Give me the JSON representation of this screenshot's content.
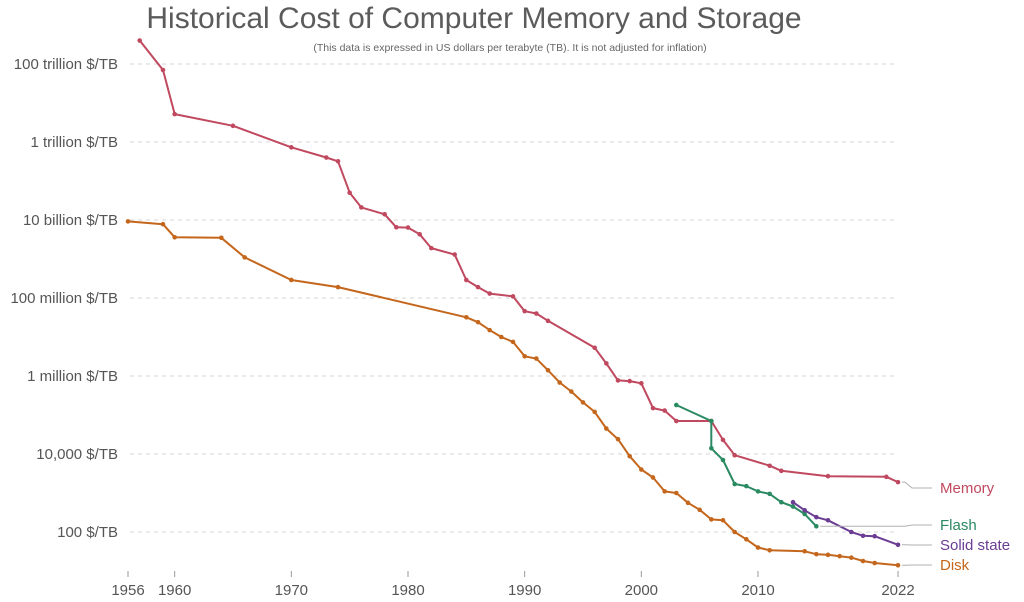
{
  "chart_data": {
    "type": "line",
    "title": "Historical Cost of Computer Memory and Storage",
    "subtitle": "(This data is expressed in US dollars per terabyte (TB). It is not adjusted for inflation)",
    "yscale": "log",
    "xlim": [
      1956,
      2022
    ],
    "ylim": [
      13,
      600000000000000
    ],
    "grid": true,
    "legend": "right",
    "x_ticks": [
      {
        "value": 1956,
        "label": "1956"
      },
      {
        "value": 1960,
        "label": "1960"
      },
      {
        "value": 1970,
        "label": "1970"
      },
      {
        "value": 1980,
        "label": "1980"
      },
      {
        "value": 1990,
        "label": "1990"
      },
      {
        "value": 2000,
        "label": "2000"
      },
      {
        "value": 2010,
        "label": "2010"
      },
      {
        "value": 2022,
        "label": "2022"
      }
    ],
    "y_ticks": [
      {
        "value": 100,
        "label": "100 $/TB"
      },
      {
        "value": 10000,
        "label": "10,000 $/TB"
      },
      {
        "value": 1000000,
        "label": "1 million $/TB"
      },
      {
        "value": 100000000,
        "label": "100 million $/TB"
      },
      {
        "value": 10000000000,
        "label": "10 billion $/TB"
      },
      {
        "value": 1000000000000,
        "label": "1 trillion $/TB"
      },
      {
        "value": 100000000000000,
        "label": "100 trillion $/TB"
      }
    ],
    "series": [
      {
        "name": "Memory",
        "color": "#c0485f",
        "points": [
          [
            1957,
            400000000000000
          ],
          [
            1959,
            70000000000000
          ],
          [
            1960,
            5200000000000
          ],
          [
            1965,
            2600000000000
          ],
          [
            1970,
            730000000000
          ],
          [
            1973,
            400000000000
          ],
          [
            1974,
            320000000000
          ],
          [
            1975,
            50000000000
          ],
          [
            1976,
            21000000000
          ],
          [
            1978,
            14000000000
          ],
          [
            1979,
            6500000000
          ],
          [
            1980,
            6400000000
          ],
          [
            1981,
            4300000000
          ],
          [
            1982,
            1900000000
          ],
          [
            1984,
            1300000000
          ],
          [
            1985,
            290000000
          ],
          [
            1986,
            190000000
          ],
          [
            1987,
            130000000
          ],
          [
            1989,
            110000000
          ],
          [
            1990,
            46000000
          ],
          [
            1991,
            40000000
          ],
          [
            1992,
            26000000
          ],
          [
            1996,
            5300000
          ],
          [
            1997,
            2100000
          ],
          [
            1998,
            770000
          ],
          [
            1999,
            740000
          ],
          [
            2000,
            650000
          ],
          [
            2001,
            150000
          ],
          [
            2002,
            130000
          ],
          [
            2003,
            70000
          ],
          [
            2006,
            70000
          ],
          [
            2007,
            23000
          ],
          [
            2008,
            9300
          ],
          [
            2011,
            5000
          ],
          [
            2012,
            3700
          ],
          [
            2016,
            2700
          ],
          [
            2021,
            2600
          ],
          [
            2022,
            1900
          ]
        ]
      },
      {
        "name": "Flash",
        "color": "#2a8a62",
        "points": [
          [
            2003,
            180000
          ],
          [
            2006,
            70000
          ],
          [
            2006,
            14000
          ],
          [
            2007,
            7000
          ],
          [
            2008,
            1700
          ],
          [
            2009,
            1500
          ],
          [
            2010,
            1100
          ],
          [
            2011,
            950
          ],
          [
            2012,
            580
          ],
          [
            2013,
            450
          ],
          [
            2014,
            290
          ],
          [
            2015,
            140
          ]
        ]
      },
      {
        "name": "Solid state",
        "color": "#6a3c93",
        "points": [
          [
            2013,
            580
          ],
          [
            2014,
            360
          ],
          [
            2015,
            240
          ],
          [
            2016,
            200
          ],
          [
            2018,
            100
          ],
          [
            2019,
            80
          ],
          [
            2020,
            78
          ],
          [
            2022,
            47
          ]
        ]
      },
      {
        "name": "Disk",
        "color": "#c4661c",
        "points": [
          [
            1956,
            9200000000
          ],
          [
            1959,
            7800000000
          ],
          [
            1960,
            3600000000
          ],
          [
            1964,
            3500000000
          ],
          [
            1966,
            1100000000
          ],
          [
            1970,
            290000000
          ],
          [
            1974,
            190000000
          ],
          [
            1985,
            32000000
          ],
          [
            1986,
            24000000
          ],
          [
            1987,
            15000000
          ],
          [
            1988,
            10000000
          ],
          [
            1989,
            7500000
          ],
          [
            1990,
            3200000
          ],
          [
            1991,
            2800000
          ],
          [
            1992,
            1400000
          ],
          [
            1993,
            680000
          ],
          [
            1994,
            400000
          ],
          [
            1995,
            210000
          ],
          [
            1996,
            120000
          ],
          [
            1997,
            45000
          ],
          [
            1998,
            24000
          ],
          [
            1999,
            8800
          ],
          [
            2000,
            4000
          ],
          [
            2001,
            2500
          ],
          [
            2002,
            1100
          ],
          [
            2003,
            1000
          ],
          [
            2004,
            560
          ],
          [
            2005,
            370
          ],
          [
            2006,
            210
          ],
          [
            2007,
            200
          ],
          [
            2008,
            100
          ],
          [
            2009,
            65
          ],
          [
            2010,
            40
          ],
          [
            2011,
            34
          ],
          [
            2014,
            32
          ],
          [
            2015,
            27
          ],
          [
            2016,
            26
          ],
          [
            2017,
            24
          ],
          [
            2018,
            22
          ],
          [
            2019,
            18
          ],
          [
            2020,
            16
          ],
          [
            2022,
            14
          ]
        ]
      }
    ]
  }
}
